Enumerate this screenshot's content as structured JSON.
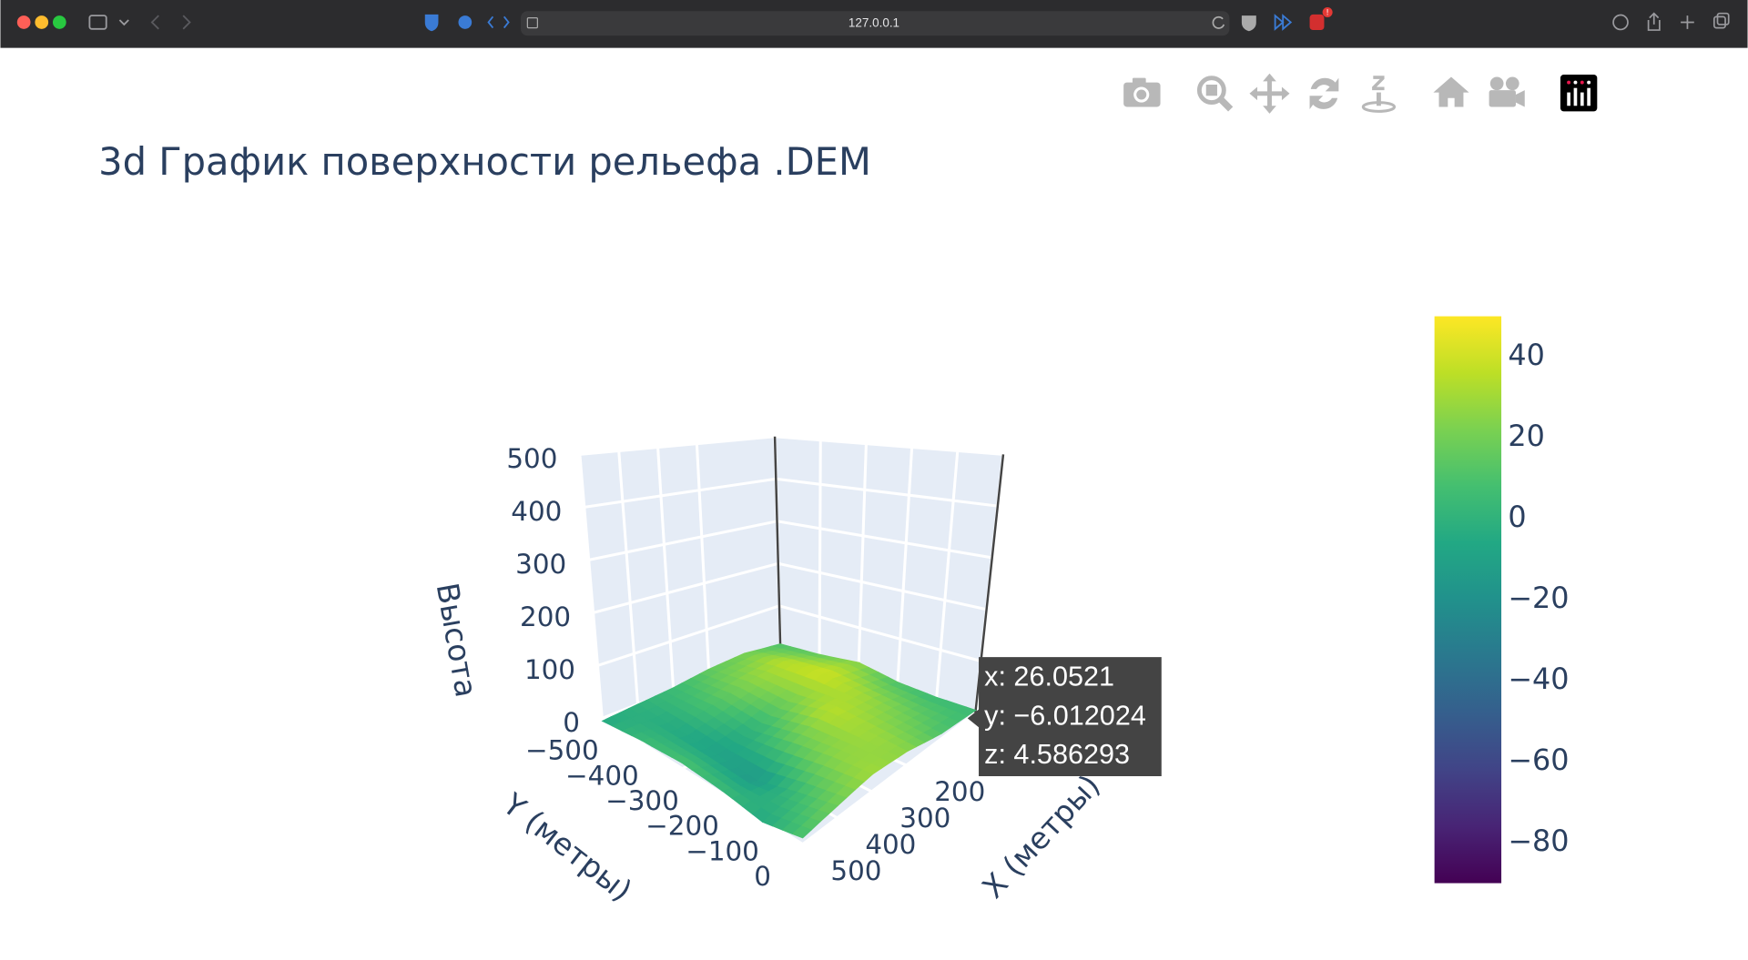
{
  "browser": {
    "url": "127.0.0.1",
    "badge": "!"
  },
  "chart_data": {
    "type": "surface",
    "title": "3d График поверхности рельефа .DEM",
    "x_label": "X (метры)",
    "y_label": "Y (метры)",
    "z_label": "Высота",
    "x": [
      0,
      100,
      200,
      300,
      400,
      500
    ],
    "y": [
      -500,
      -400,
      -300,
      -200,
      -100,
      0
    ],
    "z": [
      [
        10,
        20,
        15,
        5,
        0,
        -5
      ],
      [
        15,
        35,
        25,
        10,
        -5,
        5
      ],
      [
        25,
        40,
        20,
        0,
        -10,
        10
      ],
      [
        10,
        30,
        35,
        15,
        -15,
        5
      ],
      [
        5,
        20,
        30,
        25,
        5,
        -5
      ],
      [
        5,
        10,
        25,
        30,
        20,
        10
      ]
    ],
    "xlim": [
      0,
      500
    ],
    "ylim": [
      -500,
      0
    ],
    "zlim": [
      0,
      500
    ],
    "xticks": [
      200,
      300,
      400,
      500
    ],
    "yticks": [
      {
        "value": -500,
        "label": "−500"
      },
      {
        "value": -400,
        "label": "−400"
      },
      {
        "value": -300,
        "label": "−300"
      },
      {
        "value": -200,
        "label": "−200"
      },
      {
        "value": -100,
        "label": "−100"
      },
      0
    ],
    "zticks": [
      0,
      100,
      200,
      300,
      400,
      500
    ],
    "colorscale": "viridis",
    "clim": [
      -90,
      50
    ],
    "cticks": [
      40,
      20,
      0,
      {
        "value": -20,
        "label": "−20"
      },
      {
        "value": -40,
        "label": "−40"
      },
      {
        "value": -60,
        "label": "−60"
      },
      {
        "value": -80,
        "label": "−80"
      }
    ],
    "tooltip": [
      "x: 26.0521",
      "y: −6.012024",
      "z: 4.586293"
    ]
  }
}
